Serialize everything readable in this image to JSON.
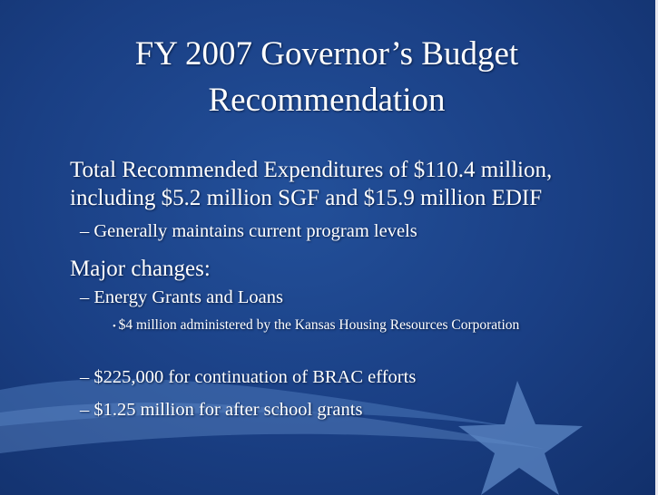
{
  "title": "FY 2007 Governor’s Budget Recommendation",
  "bullets": [
    {
      "text": "Total Recommended Expenditures of $110.4 million, including $5.2 million SGF and $15.9 million EDIF",
      "subitems": [
        {
          "text": "Generally maintains current program levels"
        }
      ]
    },
    {
      "text": "Major changes:",
      "subitems": [
        {
          "text": "Energy Grants and Loans",
          "subitems": [
            "$4 million administered by the Kansas Housing Resources Corporation"
          ]
        },
        {
          "text": "$225,000 for continuation of BRAC efforts"
        },
        {
          "text": "$1.25 million for after school grants"
        }
      ]
    }
  ]
}
